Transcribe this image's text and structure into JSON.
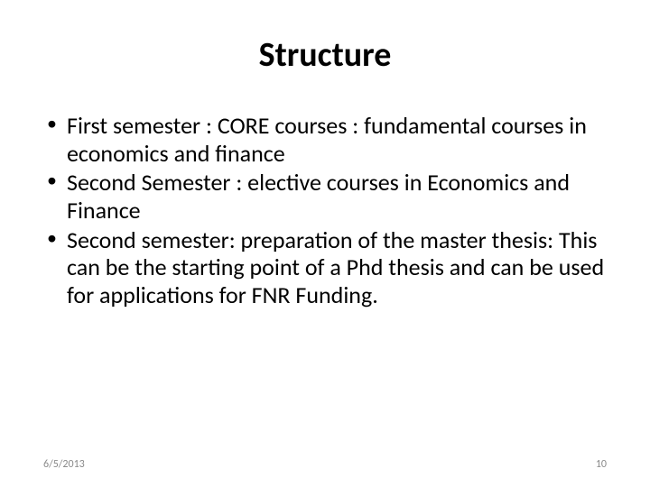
{
  "slide": {
    "title": "Structure",
    "bullets": [
      "First semester : CORE courses : fundamental courses in economics and finance",
      "Second Semester : elective courses in Economics and Finance",
      "Second semester: preparation of the master thesis: This can be the starting point of a Phd thesis and can be used for applications for FNR Funding."
    ]
  },
  "footer": {
    "date": "6/5/2013",
    "page_number": "10"
  },
  "styles": {
    "background_color": "#ffffff",
    "title_color": "#000000",
    "title_fontsize": 38,
    "title_weight": "bold",
    "body_color": "#000000",
    "body_fontsize": 26,
    "footer_color": "#8a8a8a",
    "footer_fontsize": 12,
    "font_family": "Calibri"
  }
}
